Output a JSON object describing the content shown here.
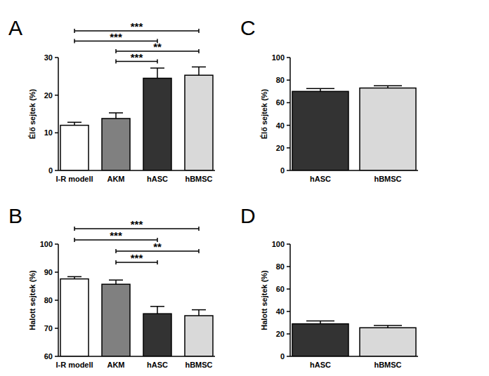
{
  "chart_data": [
    {
      "type": "bar",
      "title": "A",
      "y_label": "Élő sejtek (%)",
      "categories": [
        "I-R modell",
        "AKM",
        "hASC",
        "hBMSC"
      ],
      "values": [
        12.0,
        13.8,
        24.5,
        25.3
      ],
      "errors": [
        0.8,
        1.5,
        2.7,
        2.2
      ],
      "colors": [
        "#ffffff",
        "#808080",
        "#333333",
        "#d9d9d9"
      ],
      "ylim": [
        0,
        30
      ],
      "yticks": [
        0,
        10,
        20,
        30
      ],
      "annotations": [
        {
          "between": [
            "I-R modell",
            "hBMSC"
          ],
          "label": "***"
        },
        {
          "between": [
            "I-R modell",
            "hASC"
          ],
          "label": "***"
        },
        {
          "between": [
            "AKM",
            "hBMSC"
          ],
          "label": "**"
        },
        {
          "between": [
            "AKM",
            "hASC"
          ],
          "label": "***"
        }
      ]
    },
    {
      "type": "bar",
      "title": "B",
      "y_label": "Halott sejtek (%)",
      "categories": [
        "I-R modell",
        "AKM",
        "hASC",
        "hBMSC"
      ],
      "values": [
        87.6,
        85.7,
        75.2,
        74.5
      ],
      "errors": [
        0.8,
        1.5,
        2.6,
        2.1
      ],
      "colors": [
        "#ffffff",
        "#808080",
        "#333333",
        "#d9d9d9"
      ],
      "ylim": [
        60,
        100
      ],
      "yticks": [
        60,
        70,
        80,
        90,
        100
      ],
      "annotations": [
        {
          "between": [
            "I-R modell",
            "hBMSC"
          ],
          "label": "***"
        },
        {
          "between": [
            "I-R modell",
            "hASC"
          ],
          "label": "***"
        },
        {
          "between": [
            "AKM",
            "hBMSC"
          ],
          "label": "**"
        },
        {
          "between": [
            "AKM",
            "hASC"
          ],
          "label": "***"
        }
      ]
    },
    {
      "type": "bar",
      "title": "C",
      "y_label": "Élő sejtek (%)",
      "categories": [
        "hASC",
        "hBMSC"
      ],
      "values": [
        70.0,
        73.0
      ],
      "errors": [
        2.5,
        2.0
      ],
      "colors": [
        "#333333",
        "#d9d9d9"
      ],
      "ylim": [
        0,
        100
      ],
      "yticks": [
        0,
        20,
        40,
        60,
        80,
        100
      ]
    },
    {
      "type": "bar",
      "title": "D",
      "y_label": "Halott sejtek (%)",
      "categories": [
        "hASC",
        "hBMSC"
      ],
      "values": [
        29.0,
        25.5
      ],
      "errors": [
        2.5,
        2.0
      ],
      "colors": [
        "#333333",
        "#d9d9d9"
      ],
      "ylim": [
        0,
        100
      ],
      "yticks": [
        0,
        20,
        40,
        60,
        80,
        100
      ]
    }
  ]
}
